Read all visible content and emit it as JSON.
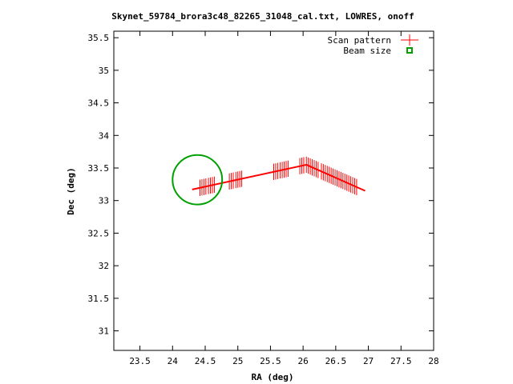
{
  "chart_data": {
    "type": "scatter",
    "title": "Skynet_59784_brora3c48_82265_31048_cal.txt, LOWRES, onoff",
    "xlabel": "RA (deg)",
    "ylabel": "Dec (deg)",
    "xlim": [
      23.1,
      28.0
    ],
    "ylim": [
      30.7,
      35.6
    ],
    "xticks": [
      "23.5",
      "24",
      "24.5",
      "25",
      "25.5",
      "26",
      "26.5",
      "27",
      "27.5",
      "28"
    ],
    "yticks": [
      "31",
      "31.5",
      "32",
      "32.5",
      "33",
      "33.5",
      "34",
      "34.5",
      "35",
      "35.5"
    ],
    "xtick_values": [
      23.5,
      24,
      24.5,
      25,
      25.5,
      26,
      26.5,
      27,
      27.5,
      28
    ],
    "ytick_values": [
      31,
      31.5,
      32,
      32.5,
      33,
      33.5,
      34,
      34.5,
      35,
      35.5
    ],
    "legend_position": "top-right",
    "grid": false,
    "series": [
      {
        "name": "Scan pattern",
        "color": "#ff0000",
        "marker": "plus",
        "scan_start": [
          24.3,
          33.17
        ],
        "scan_mid": [
          26.05,
          33.55
        ],
        "scan_end": [
          26.95,
          33.15
        ],
        "leg1_columns": [
          24.42,
          24.45,
          24.48,
          24.51,
          24.55,
          24.58,
          24.61,
          24.64,
          24.87,
          24.9,
          24.93,
          24.97,
          25.0,
          25.03,
          25.06,
          25.55,
          25.58,
          25.61,
          25.65,
          25.68,
          25.71,
          25.74,
          25.77,
          25.95,
          25.98,
          26.01,
          26.05,
          26.08,
          26.11,
          26.14,
          26.17,
          26.2,
          26.23
        ],
        "leg2_columns": [
          26.28,
          26.31,
          26.34,
          26.37,
          26.4,
          26.43,
          26.46,
          26.49,
          26.52,
          26.55,
          26.58,
          26.61,
          26.64,
          26.67,
          26.7,
          26.73,
          26.76,
          26.79,
          26.82
        ]
      },
      {
        "name": "Beam size",
        "color": "#00a000",
        "marker": "open-square",
        "center": [
          24.38,
          33.32
        ],
        "radius_deg": 0.38
      }
    ]
  }
}
